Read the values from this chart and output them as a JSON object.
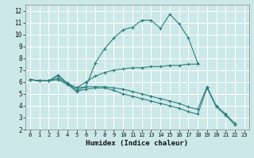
{
  "xlabel": "Humidex (Indice chaleur)",
  "bg_color": "#cce8e8",
  "grid_color": "#ffffff",
  "line_color": "#2e7d7d",
  "xlim": [
    -0.5,
    23.5
  ],
  "ylim": [
    2,
    12.5
  ],
  "xticks": [
    0,
    1,
    2,
    3,
    4,
    5,
    6,
    7,
    8,
    9,
    10,
    11,
    12,
    13,
    14,
    15,
    16,
    17,
    18,
    19,
    20,
    21,
    22,
    23
  ],
  "yticks": [
    2,
    3,
    4,
    5,
    6,
    7,
    8,
    9,
    10,
    11,
    12
  ],
  "line1_y": [
    6.2,
    6.1,
    6.1,
    6.6,
    5.9,
    5.3,
    5.6,
    7.6,
    8.8,
    9.7,
    10.4,
    10.6,
    11.2,
    11.2,
    10.5,
    11.7,
    10.9,
    9.7,
    7.6,
    null,
    null,
    null,
    null,
    null
  ],
  "line2_y": [
    6.2,
    6.1,
    6.1,
    6.5,
    5.9,
    5.5,
    6.0,
    6.5,
    6.8,
    7.0,
    7.1,
    7.2,
    7.2,
    7.3,
    7.3,
    7.4,
    7.4,
    7.5,
    7.5,
    null,
    null,
    null,
    null,
    null
  ],
  "line3_y": [
    6.2,
    6.1,
    6.1,
    6.3,
    5.9,
    5.5,
    5.6,
    5.6,
    5.6,
    5.5,
    5.4,
    5.2,
    5.0,
    4.8,
    4.6,
    4.4,
    4.2,
    3.9,
    3.7,
    5.6,
    4.0,
    3.3,
    2.5,
    null
  ],
  "line4_y": [
    6.2,
    6.1,
    6.1,
    6.2,
    5.8,
    5.2,
    5.4,
    5.5,
    5.5,
    5.3,
    5.0,
    4.8,
    4.6,
    4.4,
    4.2,
    4.0,
    3.8,
    3.5,
    3.3,
    5.5,
    3.9,
    3.2,
    2.4,
    null
  ]
}
